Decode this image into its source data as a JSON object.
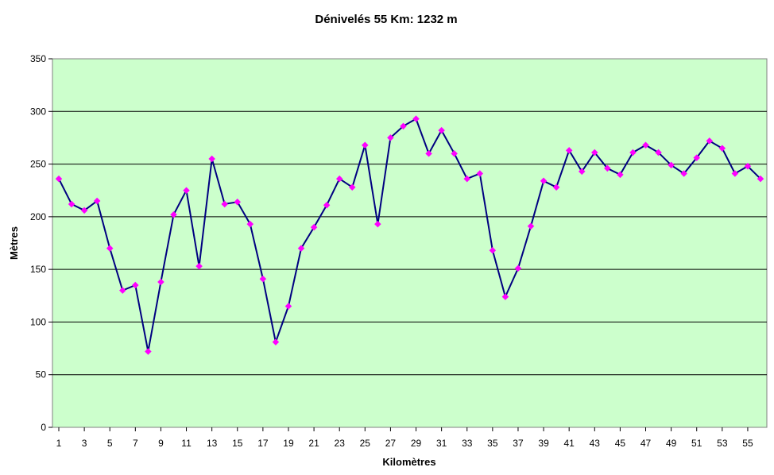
{
  "chart_data": {
    "type": "line",
    "title": "Dénivelés 55 Km: 1232 m",
    "xlabel": "Kilomètres",
    "ylabel": "Mètres",
    "ylim": [
      0,
      350
    ],
    "yticks": [
      0,
      50,
      100,
      150,
      200,
      250,
      300,
      350
    ],
    "xlim": [
      1,
      56
    ],
    "xticks": [
      1,
      3,
      5,
      7,
      9,
      11,
      13,
      15,
      17,
      19,
      21,
      23,
      25,
      27,
      29,
      31,
      33,
      35,
      37,
      39,
      41,
      43,
      45,
      47,
      49,
      51,
      53,
      55
    ],
    "grid": true,
    "legend": "none",
    "colors": {
      "plot_bg": "#ccffcc",
      "line": "#000080",
      "marker": "#ff00ff",
      "grid": "#000000"
    },
    "series": [
      {
        "x": [
          1,
          2,
          3,
          4,
          5,
          6,
          7,
          8,
          9,
          10,
          11,
          12,
          13,
          14,
          15,
          16,
          17,
          18,
          19,
          20,
          21,
          22,
          23,
          24,
          25,
          26,
          27,
          28,
          29,
          30,
          31,
          32,
          33,
          34,
          35,
          36,
          37,
          38,
          39,
          40,
          41,
          42,
          43,
          44,
          45,
          46,
          47,
          48,
          49,
          50,
          51,
          52,
          53,
          54,
          55,
          56
        ],
        "values": [
          236,
          212,
          206,
          215,
          170,
          130,
          135,
          72,
          138,
          202,
          225,
          153,
          255,
          212,
          214,
          193,
          141,
          81,
          115,
          170,
          190,
          211,
          236,
          228,
          268,
          193,
          275,
          286,
          293,
          260,
          282,
          260,
          236,
          241,
          168,
          124,
          151,
          191,
          234,
          228,
          263,
          243,
          261,
          246,
          240,
          261,
          268,
          261,
          249,
          241,
          256,
          272,
          265,
          241,
          248,
          236
        ]
      }
    ]
  }
}
